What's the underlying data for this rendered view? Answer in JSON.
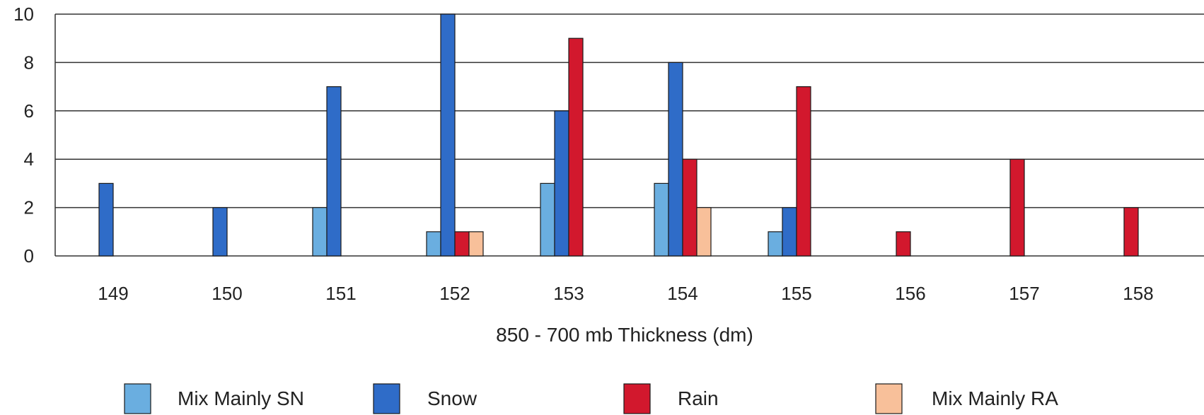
{
  "chart_data": {
    "type": "bar",
    "title": "",
    "xlabel": "850 - 700 mb Thickness (dm)",
    "ylabel": "",
    "ylim": [
      0,
      10
    ],
    "yticks": [
      0,
      2,
      4,
      6,
      8,
      10
    ],
    "grid": true,
    "legend_position": "bottom",
    "categories": [
      "149",
      "150",
      "151",
      "152",
      "153",
      "154",
      "155",
      "156",
      "157",
      "158"
    ],
    "series": [
      {
        "name": "Mix Mainly SN",
        "color": "#6aaee0",
        "values": [
          0,
          0,
          2,
          1,
          3,
          3,
          1,
          0,
          0,
          0
        ]
      },
      {
        "name": "Snow",
        "color": "#2f6cc8",
        "values": [
          3,
          2,
          7,
          10,
          6,
          8,
          2,
          0,
          0,
          0
        ]
      },
      {
        "name": "Rain",
        "color": "#d2182d",
        "values": [
          0,
          0,
          0,
          1,
          9,
          4,
          7,
          1,
          4,
          2
        ]
      },
      {
        "name": "Mix Mainly RA",
        "color": "#f8c09a",
        "values": [
          0,
          0,
          0,
          1,
          0,
          2,
          0,
          0,
          0,
          0
        ]
      }
    ]
  }
}
